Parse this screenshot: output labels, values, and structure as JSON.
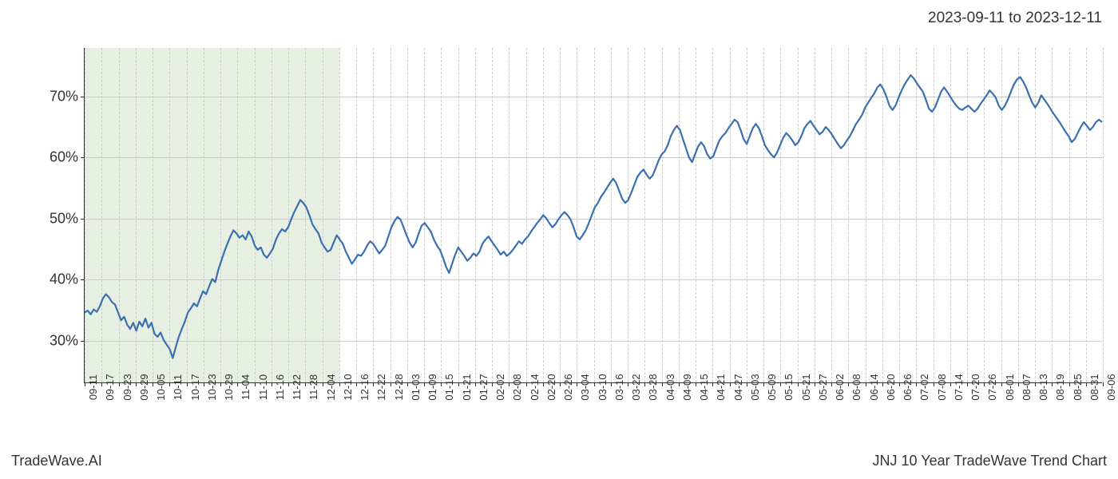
{
  "header": {
    "date_range": "2023-09-11 to 2023-12-11"
  },
  "footer": {
    "left": "TradeWave.AI",
    "right": "JNJ 10 Year TradeWave Trend Chart"
  },
  "chart": {
    "type": "line",
    "line_color": "#3a6fb0",
    "line_width": 2.2,
    "background_color": "#ffffff",
    "grid_color_major": "#cccccc",
    "grid_dash": "3,3",
    "highlight_band": {
      "color": "#dce8d4",
      "opacity": 0.7,
      "x_start_index": 0,
      "x_end_index": 15
    },
    "y_axis": {
      "min": 23,
      "max": 78,
      "ticks": [
        30,
        40,
        50,
        60,
        70
      ],
      "tick_labels": [
        "30%",
        "40%",
        "50%",
        "60%",
        "70%"
      ],
      "label_fontsize": 18
    },
    "x_axis": {
      "tick_labels": [
        "09-11",
        "09-17",
        "09-23",
        "09-29",
        "10-05",
        "10-11",
        "10-17",
        "10-23",
        "10-29",
        "11-04",
        "11-10",
        "11-16",
        "11-22",
        "11-28",
        "12-04",
        "12-10",
        "12-16",
        "12-22",
        "12-28",
        "01-03",
        "01-09",
        "01-15",
        "01-21",
        "01-27",
        "02-02",
        "02-08",
        "02-14",
        "02-20",
        "02-26",
        "03-04",
        "03-10",
        "03-16",
        "03-22",
        "03-28",
        "04-03",
        "04-09",
        "04-15",
        "04-21",
        "04-27",
        "05-03",
        "05-09",
        "05-15",
        "05-21",
        "05-27",
        "06-02",
        "06-08",
        "06-14",
        "06-20",
        "06-26",
        "07-02",
        "07-08",
        "07-14",
        "07-20",
        "07-26",
        "08-01",
        "08-07",
        "08-13",
        "08-19",
        "08-25",
        "08-31",
        "09-06"
      ],
      "label_fontsize": 13,
      "rotation": -90
    },
    "series": {
      "values": [
        34.5,
        34.8,
        34.2,
        35.0,
        34.6,
        35.5,
        36.8,
        37.5,
        37.0,
        36.2,
        35.8,
        34.5,
        33.2,
        33.8,
        32.5,
        31.8,
        32.8,
        31.5,
        33.0,
        32.2,
        33.5,
        32.0,
        32.8,
        31.0,
        30.5,
        31.2,
        30.0,
        29.2,
        28.5,
        27.0,
        28.8,
        30.5,
        31.8,
        33.0,
        34.5,
        35.2,
        36.0,
        35.5,
        36.8,
        38.0,
        37.5,
        38.8,
        40.0,
        39.5,
        41.5,
        43.0,
        44.5,
        45.8,
        47.0,
        48.0,
        47.5,
        46.8,
        47.2,
        46.5,
        47.8,
        47.0,
        45.5,
        44.8,
        45.2,
        44.0,
        43.5,
        44.2,
        45.0,
        46.5,
        47.5,
        48.2,
        47.8,
        48.5,
        49.8,
        51.0,
        52.0,
        53.0,
        52.5,
        51.8,
        50.5,
        49.0,
        48.2,
        47.5,
        46.0,
        45.2,
        44.5,
        44.8,
        46.0,
        47.2,
        46.5,
        45.8,
        44.5,
        43.5,
        42.5,
        43.2,
        44.0,
        43.8,
        44.5,
        45.5,
        46.2,
        45.8,
        45.0,
        44.2,
        44.8,
        45.5,
        47.0,
        48.5,
        49.5,
        50.2,
        49.8,
        48.5,
        47.2,
        46.0,
        45.2,
        46.0,
        47.5,
        48.8,
        49.2,
        48.5,
        47.8,
        46.5,
        45.5,
        44.8,
        43.5,
        42.0,
        41.0,
        42.5,
        44.0,
        45.2,
        44.5,
        43.8,
        43.0,
        43.5,
        44.2,
        43.8,
        44.5,
        45.8,
        46.5,
        47.0,
        46.2,
        45.5,
        44.8,
        44.0,
        44.5,
        43.8,
        44.2,
        44.8,
        45.5,
        46.2,
        45.8,
        46.5,
        47.0,
        47.8,
        48.5,
        49.2,
        49.8,
        50.5,
        50.0,
        49.2,
        48.5,
        49.0,
        49.8,
        50.5,
        51.0,
        50.5,
        49.8,
        48.5,
        47.0,
        46.5,
        47.2,
        48.0,
        49.2,
        50.5,
        51.8,
        52.5,
        53.5,
        54.2,
        55.0,
        55.8,
        56.5,
        55.8,
        54.5,
        53.2,
        52.5,
        53.0,
        54.2,
        55.5,
        56.8,
        57.5,
        58.0,
        57.2,
        56.5,
        57.0,
        58.2,
        59.5,
        60.5,
        61.0,
        62.0,
        63.5,
        64.5,
        65.2,
        64.5,
        63.0,
        61.5,
        60.0,
        59.2,
        60.5,
        61.8,
        62.5,
        61.8,
        60.5,
        59.8,
        60.2,
        61.5,
        62.8,
        63.5,
        64.0,
        64.8,
        65.5,
        66.2,
        65.8,
        64.5,
        63.0,
        62.2,
        63.5,
        64.8,
        65.5,
        64.8,
        63.5,
        62.0,
        61.2,
        60.5,
        60.0,
        60.8,
        62.0,
        63.2,
        64.0,
        63.5,
        62.8,
        62.0,
        62.5,
        63.5,
        64.8,
        65.5,
        66.0,
        65.2,
        64.5,
        63.8,
        64.2,
        65.0,
        64.5,
        63.8,
        63.0,
        62.2,
        61.5,
        62.0,
        62.8,
        63.5,
        64.5,
        65.5,
        66.2,
        67.0,
        68.2,
        69.0,
        69.8,
        70.5,
        71.5,
        72.0,
        71.2,
        70.0,
        68.5,
        67.8,
        68.5,
        69.8,
        71.0,
        72.0,
        72.8,
        73.5,
        73.0,
        72.2,
        71.5,
        70.8,
        69.5,
        68.0,
        67.5,
        68.2,
        69.5,
        70.8,
        71.5,
        70.8,
        70.0,
        69.2,
        68.5,
        68.0,
        67.8,
        68.2,
        68.5,
        68.0,
        67.5,
        68.0,
        68.8,
        69.5,
        70.2,
        71.0,
        70.5,
        69.8,
        68.5,
        67.8,
        68.5,
        69.5,
        70.8,
        72.0,
        72.8,
        73.2,
        72.5,
        71.5,
        70.2,
        69.0,
        68.2,
        69.0,
        70.2,
        69.5,
        68.8,
        68.0,
        67.2,
        66.5,
        65.8,
        65.0,
        64.2,
        63.5,
        62.5,
        63.0,
        64.0,
        65.0,
        65.8,
        65.2,
        64.5,
        65.0,
        65.8,
        66.2,
        65.8
      ]
    }
  }
}
